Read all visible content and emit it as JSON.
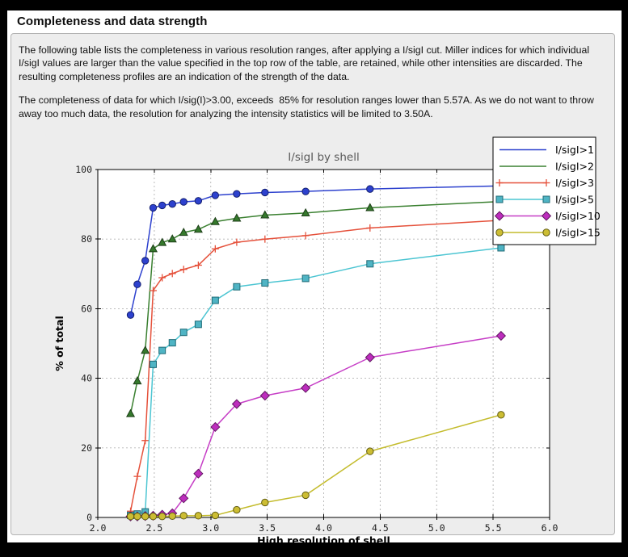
{
  "window": {
    "title": "Completeness and data strength"
  },
  "paragraphs": {
    "p1": "The following table lists the completeness in various resolution ranges, after applying a I/sigI cut. Miller indices for which individual I/sigI values are larger than the value specified in the top row of the table, are retained, while other intensities are discarded. The resulting completeness profiles are an indication of the strength of the data.",
    "p2": "The completeness of data for which I/sig(I)>3.00, exceeds  85% for resolution ranges lower than 5.57A. As we do not want to throw away too much data, the resolution for analyzing the intensity statistics will be limited to 3.50A."
  },
  "chart_data": {
    "type": "line",
    "title": "I/sigI by shell",
    "xlabel": "High resolution of shell",
    "ylabel": "% of total",
    "xlim": [
      2.0,
      6.0
    ],
    "ylim": [
      0,
      100
    ],
    "xticks": [
      2.0,
      2.5,
      3.0,
      3.5,
      4.0,
      4.5,
      5.0,
      5.5,
      6.0
    ],
    "xtick_labels": [
      "2.0",
      "2.5",
      "3.0",
      "3.5",
      "4.0",
      "4.5",
      "5.0",
      "5.5",
      "6.0"
    ],
    "yticks": [
      0,
      20,
      40,
      60,
      80,
      100
    ],
    "ytick_labels": [
      "0",
      "20",
      "40",
      "60",
      "80",
      "100"
    ],
    "grid": "dashed",
    "legend_position": "top-right",
    "title_color": "#585858",
    "x": [
      2.29,
      2.35,
      2.42,
      2.49,
      2.57,
      2.66,
      2.76,
      2.89,
      3.04,
      3.23,
      3.48,
      3.84,
      4.41,
      5.57
    ],
    "series": [
      {
        "name": "I/sigI>1",
        "color": "#2d41ce",
        "marker": "circle",
        "marker_fill": "#2d41ce",
        "marker_edge": "#14206e",
        "legend_marker": false,
        "values": [
          58.2,
          67.0,
          73.8,
          89.0,
          89.7,
          90.1,
          90.7,
          91.0,
          92.6,
          93.0,
          93.4,
          93.7,
          94.4,
          95.3
        ]
      },
      {
        "name": "I/sigI>2",
        "color": "#3a8030",
        "marker": "triangle",
        "marker_fill": "#35792c",
        "marker_edge": "#1c3d17",
        "legend_marker": false,
        "values": [
          29.8,
          39.2,
          48.0,
          77.2,
          79.0,
          80.0,
          81.9,
          82.8,
          85.0,
          86.0,
          86.9,
          87.5,
          89.0,
          90.8
        ]
      },
      {
        "name": "I/sigI>3",
        "color": "#e5513b",
        "marker": "plus",
        "marker_fill": "#e5513b",
        "marker_edge": "#e5513b",
        "legend_marker": true,
        "values": [
          1.8,
          11.8,
          22.1,
          65.2,
          68.9,
          70.1,
          71.3,
          72.5,
          77.2,
          79.1,
          80.0,
          81.0,
          83.2,
          85.4
        ]
      },
      {
        "name": "I/sigI>5",
        "color": "#4cc5d2",
        "marker": "square",
        "marker_fill": "#4fb4c4",
        "marker_edge": "#1f6a76",
        "legend_marker": true,
        "values": [
          0.6,
          1.0,
          1.6,
          44.0,
          48.0,
          50.2,
          53.2,
          55.5,
          62.4,
          66.3,
          67.4,
          68.7,
          72.9,
          77.5
        ]
      },
      {
        "name": "I/sigI>10",
        "color": "#c63ec6",
        "marker": "diamond",
        "marker_fill": "#bd2dbd",
        "marker_edge": "#611761",
        "legend_marker": true,
        "values": [
          0.3,
          0.3,
          0.4,
          0.5,
          0.8,
          1.2,
          5.5,
          12.6,
          26.0,
          32.6,
          35.0,
          37.2,
          46.0,
          52.2
        ]
      },
      {
        "name": "I/sigI>15",
        "color": "#c4bc2d",
        "marker": "circle",
        "marker_fill": "#ccbd33",
        "marker_edge": "#615c13",
        "legend_marker": true,
        "values": [
          0.3,
          0.3,
          0.3,
          0.3,
          0.3,
          0.4,
          0.5,
          0.5,
          0.6,
          2.2,
          4.3,
          6.4,
          19.0,
          29.5
        ]
      }
    ]
  },
  "colors": {
    "page_frame": "#000000",
    "panel_bg": "#ffffff",
    "groupbox_bg": "#ededed",
    "groupbox_border": "#b3b3b3",
    "plot_bg": "#ffffff",
    "plot_border": "#000000",
    "gridline": "#b3b3b3",
    "tick_label": "#222222",
    "legend_bg": "#ffffff",
    "legend_border": "#000000"
  }
}
